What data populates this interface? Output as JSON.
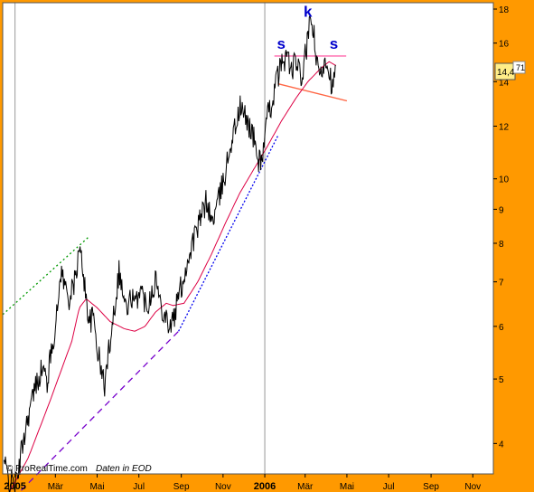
{
  "chart_data": {
    "type": "line",
    "y_scale": "log",
    "ylim": [
      3.6,
      18.4
    ],
    "y_ticks": [
      4,
      5,
      6,
      7,
      8,
      9,
      10,
      12,
      14,
      16,
      18
    ],
    "x_start": "2004-12-14",
    "x_end": "2006-12-01",
    "x_tick_labels": [
      {
        "date": "2005-01-01",
        "label": "2005",
        "year": true
      },
      {
        "date": "2005-03-01",
        "label": "Mär"
      },
      {
        "date": "2005-05-01",
        "label": "Mai"
      },
      {
        "date": "2005-07-01",
        "label": "Jul"
      },
      {
        "date": "2005-09-01",
        "label": "Sep"
      },
      {
        "date": "2005-11-01",
        "label": "Nov"
      },
      {
        "date": "2006-01-01",
        "label": "2006",
        "year": true
      },
      {
        "date": "2006-03-01",
        "label": "Mär"
      },
      {
        "date": "2006-05-01",
        "label": "Mai"
      },
      {
        "date": "2006-07-01",
        "label": "Jul"
      },
      {
        "date": "2006-09-01",
        "label": "Sep"
      },
      {
        "date": "2006-11-01",
        "label": "Nov"
      }
    ],
    "grid_years": [
      "2005-01-01",
      "2006-01-01"
    ],
    "price_keypoints": [
      [
        "2004-12-16",
        3.75
      ],
      [
        "2004-12-24",
        3.5
      ],
      [
        "2005-01-04",
        3.5
      ],
      [
        "2005-01-12",
        4.0
      ],
      [
        "2005-01-20",
        4.4
      ],
      [
        "2005-01-27",
        4.7
      ],
      [
        "2005-02-03",
        5.0
      ],
      [
        "2005-02-10",
        5.2
      ],
      [
        "2005-02-17",
        4.95
      ],
      [
        "2005-02-24",
        5.6
      ],
      [
        "2005-03-03",
        6.2
      ],
      [
        "2005-03-09",
        7.3
      ],
      [
        "2005-03-15",
        6.9
      ],
      [
        "2005-03-22",
        6.6
      ],
      [
        "2005-03-29",
        7.0
      ],
      [
        "2005-04-05",
        7.8
      ],
      [
        "2005-04-10",
        7.4
      ],
      [
        "2005-04-14",
        6.7
      ],
      [
        "2005-04-20",
        6.1
      ],
      [
        "2005-04-26",
        6.2
      ],
      [
        "2005-05-01",
        5.6
      ],
      [
        "2005-05-06",
        5.2
      ],
      [
        "2005-05-12",
        4.9
      ],
      [
        "2005-05-17",
        5.4
      ],
      [
        "2005-05-22",
        6.0
      ],
      [
        "2005-05-28",
        6.6
      ],
      [
        "2005-06-02",
        7.3
      ],
      [
        "2005-06-08",
        6.7
      ],
      [
        "2005-06-14",
        6.3
      ],
      [
        "2005-06-20",
        6.7
      ],
      [
        "2005-06-26",
        6.4
      ],
      [
        "2005-07-02",
        6.9
      ],
      [
        "2005-07-08",
        6.6
      ],
      [
        "2005-07-14",
        6.5
      ],
      [
        "2005-07-20",
        6.8
      ],
      [
        "2005-07-26",
        7.1
      ],
      [
        "2005-08-01",
        6.5
      ],
      [
        "2005-08-08",
        6.3
      ],
      [
        "2005-08-15",
        6.0
      ],
      [
        "2005-08-22",
        6.2
      ],
      [
        "2005-08-28",
        6.7
      ],
      [
        "2005-09-03",
        7.0
      ],
      [
        "2005-09-10",
        7.5
      ],
      [
        "2005-09-17",
        8.0
      ],
      [
        "2005-09-24",
        8.4
      ],
      [
        "2005-10-01",
        8.8
      ],
      [
        "2005-10-08",
        9.3
      ],
      [
        "2005-10-15",
        8.6
      ],
      [
        "2005-10-22",
        9.0
      ],
      [
        "2005-10-29",
        9.6
      ],
      [
        "2005-11-05",
        10.3
      ],
      [
        "2005-11-12",
        11.3
      ],
      [
        "2005-11-19",
        12.0
      ],
      [
        "2005-11-26",
        12.8
      ],
      [
        "2005-12-03",
        12.4
      ],
      [
        "2005-12-10",
        12.0
      ],
      [
        "2005-12-17",
        11.4
      ],
      [
        "2005-12-23",
        10.6
      ],
      [
        "2005-12-29",
        10.9
      ],
      [
        "2006-01-05",
        12.4
      ],
      [
        "2006-01-12",
        13.1
      ],
      [
        "2006-01-19",
        14.2
      ],
      [
        "2006-01-26",
        14.9
      ],
      [
        "2006-02-02",
        15.4
      ],
      [
        "2006-02-09",
        14.5
      ],
      [
        "2006-02-16",
        15.1
      ],
      [
        "2006-02-23",
        14.0
      ],
      [
        "2006-03-02",
        15.5
      ],
      [
        "2006-03-09",
        17.3
      ],
      [
        "2006-03-13",
        16.8
      ],
      [
        "2006-03-18",
        14.7
      ],
      [
        "2006-03-24",
        14.3
      ],
      [
        "2006-03-30",
        15.3
      ],
      [
        "2006-04-05",
        14.7
      ],
      [
        "2006-04-10",
        13.6
      ],
      [
        "2006-04-14",
        14.5
      ]
    ],
    "ma_keypoints": [
      [
        "2004-12-25",
        3.4
      ],
      [
        "2005-01-20",
        3.8
      ],
      [
        "2005-02-20",
        4.6
      ],
      [
        "2005-03-25",
        5.7
      ],
      [
        "2005-04-05",
        6.4
      ],
      [
        "2005-04-15",
        6.6
      ],
      [
        "2005-05-01",
        6.4
      ],
      [
        "2005-05-20",
        6.1
      ],
      [
        "2005-06-10",
        5.95
      ],
      [
        "2005-06-25",
        5.9
      ],
      [
        "2005-07-10",
        6.0
      ],
      [
        "2005-07-25",
        6.3
      ],
      [
        "2005-08-10",
        6.5
      ],
      [
        "2005-08-20",
        6.45
      ],
      [
        "2005-09-05",
        6.5
      ],
      [
        "2005-09-25",
        7.0
      ],
      [
        "2005-10-15",
        7.7
      ],
      [
        "2005-11-05",
        8.6
      ],
      [
        "2005-11-25",
        9.5
      ],
      [
        "2005-12-15",
        10.3
      ],
      [
        "2006-01-05",
        11.2
      ],
      [
        "2006-01-25",
        12.2
      ],
      [
        "2006-02-15",
        13.2
      ],
      [
        "2006-03-05",
        14.0
      ],
      [
        "2006-03-25",
        14.7
      ],
      [
        "2006-04-05",
        15.0
      ],
      [
        "2006-04-15",
        14.8
      ]
    ],
    "trendlines": [
      {
        "name": "green-dotted",
        "color": "#009900",
        "dash": "2,3",
        "from": [
          "2004-12-14",
          6.25
        ],
        "to": [
          "2005-04-20",
          8.2
        ]
      },
      {
        "name": "purple-dashed",
        "color": "#7700CC",
        "dash": "7,5",
        "from": [
          "2005-01-10",
          3.4
        ],
        "to": [
          "2005-08-28",
          5.9
        ]
      },
      {
        "name": "blue-dotted",
        "color": "#0000EE",
        "dash": "2,2",
        "from": [
          "2005-08-28",
          5.9
        ],
        "to": [
          "2006-01-20",
          11.6
        ]
      },
      {
        "name": "neckline",
        "color": "#FF6644",
        "dash": "",
        "from": [
          "2006-01-20",
          13.9
        ],
        "to": [
          "2006-05-01",
          13.1
        ]
      },
      {
        "name": "top-line",
        "color": "#FF66AA",
        "dash": "",
        "from": [
          "2006-01-15",
          15.3
        ],
        "to": [
          "2006-04-30",
          15.3
        ]
      }
    ],
    "annotations": [
      {
        "text": "s",
        "date": "2006-01-25",
        "y": 15.5
      },
      {
        "text": "k",
        "date": "2006-03-05",
        "y": 17.3
      },
      {
        "text": "s",
        "date": "2006-04-12",
        "y": 15.5
      }
    ],
    "last_value": "14,4",
    "last_value_hidden": "71",
    "series_colors": {
      "price": "#000000",
      "ma": "#DD0044"
    },
    "plot_background": "#FFFFFF",
    "frame_color": "#FF9900"
  },
  "footer": {
    "source": "© ProRealTime.com",
    "note": "Daten in EOD"
  }
}
